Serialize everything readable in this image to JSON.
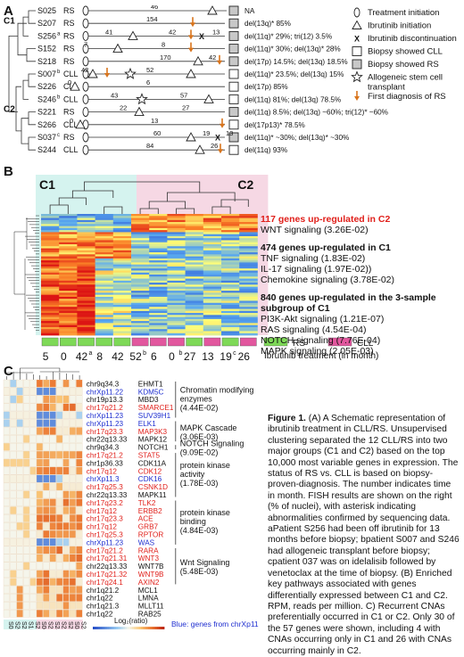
{
  "panelA": {
    "letter": "A",
    "clusters": [
      "C1",
      "C2"
    ],
    "patients": [
      {
        "id": "S025",
        "type": "RS",
        "months": "46",
        "fish": "NA"
      },
      {
        "id": "S207",
        "type": "RS",
        "months": "154",
        "fish": "del(13q)* 85%"
      },
      {
        "id": "S256",
        "sup": "a",
        "type": "RS",
        "months_a": "41",
        "months_b": "42",
        "months_c": "13",
        "fish": "del(11q)* 29%; tri(12) 3.5%"
      },
      {
        "id": "S152",
        "type": "RS",
        "months_a": "7",
        "months_b": "8",
        "fish": "del(11q)* 30%; del(13q)* 28%"
      },
      {
        "id": "S218",
        "type": "RS",
        "months_a": "170",
        "months_b": "42",
        "fish": "del(17p) 14.5%; del(13q) 18.5%"
      },
      {
        "id": "S007",
        "sup": "b",
        "type": "CLL",
        "months_a": "42",
        "months_b": "52",
        "fish": "del(11q)* 23.5%; del(13q) 15%"
      },
      {
        "id": "S226",
        "type": "CLL",
        "months_a": "0",
        "months_b": "6",
        "fish": "del(17p) 85%"
      },
      {
        "id": "S246",
        "sup": "b",
        "type": "CLL",
        "months_a": "43",
        "months_b": "57",
        "fish": "del(11q) 81%; del(13q) 78.5%"
      },
      {
        "id": "S221",
        "type": "RS",
        "months_a": "22",
        "months_b": "27",
        "fish": "del(11q) 8.5%; del(13q) ~60%; tri(12)* ~60%"
      },
      {
        "id": "S266",
        "type": "CLL",
        "months_a": "0",
        "months_b": "13",
        "fish": "del(17p13)* 78.5%"
      },
      {
        "id": "S037",
        "sup": "c",
        "type": "RS",
        "months_a": "60",
        "months_b": "19",
        "months_c": "13",
        "fish": "del(11q)* ~30%; del(13q)* ~30%"
      },
      {
        "id": "S244",
        "type": "CLL",
        "months": "84",
        "months_b": "26",
        "fish": "del(11q) 93%"
      }
    ],
    "legend": [
      {
        "icon": "circle",
        "label": "Treatment initiation"
      },
      {
        "icon": "triangle",
        "label": "Ibrutinib initiation"
      },
      {
        "icon": "x",
        "label": "Ibrutinib discontinuation"
      },
      {
        "icon": "square-white",
        "label": "Biopsy showed CLL"
      },
      {
        "icon": "square-grey",
        "label": "Biopsy showed RS"
      },
      {
        "icon": "star",
        "label": "Allogeneic stem cell transplant"
      },
      {
        "icon": "arrow",
        "label": "First diagnosis of RS"
      }
    ]
  },
  "panelB": {
    "letter": "B",
    "c1": "C1",
    "c2": "C2",
    "up_c2_title": "117 genes up-regulated in C2",
    "up_c2_items": [
      "WNT signaling (3.26E-02)"
    ],
    "up_c1_title": "474 genes up-regulated in C1",
    "up_c1_items": [
      "TNF signaling (1.83E-02)",
      "IL-17 signaling (1.97E-02))",
      "Chemokine signaling (3.78E-02)"
    ],
    "sub_title": "840 genes up-regulated in the 3-sample subgroup of C1",
    "sub_items": [
      "PI3K-Akt signaling (1.21E-07)",
      "RAS signaling (4.54E-04)",
      "NOTCH signaling (7.76E-04)",
      "MAPK signaling (2.05E-03)"
    ],
    "legend_rs": "RS",
    "legend_cll": "CLL",
    "ibr_treatment": "Ibrutinib treatment (in month)",
    "ibr_biopsy": "Ibrutinib treatment at biopsy",
    "zscore_label": "Log₂RPM Z-score",
    "zscore_ticks": [
      "-2",
      "-1",
      "0",
      "1",
      "2"
    ],
    "samples": [
      {
        "id": "S025",
        "months": "5",
        "at_biopsy": "+",
        "type": "RS"
      },
      {
        "id": "S207",
        "months": "0",
        "at_biopsy": "-",
        "type": "RS"
      },
      {
        "id": "S256",
        "months": "42a",
        "at_biopsy": "-",
        "type": "RS"
      },
      {
        "id": "S152",
        "months": "8",
        "at_biopsy": "+",
        "type": "RS"
      },
      {
        "id": "S218",
        "months": "42",
        "at_biopsy": "+",
        "type": "RS"
      },
      {
        "id": "S007",
        "months": "52b",
        "at_biopsy": "+",
        "type": "CLL"
      },
      {
        "id": "S226",
        "months": "6",
        "at_biopsy": "+",
        "type": "CLL"
      },
      {
        "id": "S246",
        "months": "0b",
        "at_biopsy": "-",
        "type": "CLL"
      },
      {
        "id": "S221",
        "months": "27",
        "at_biopsy": "+",
        "type": "RS"
      },
      {
        "id": "S266",
        "months": "13",
        "at_biopsy": "+",
        "type": "CLL"
      },
      {
        "id": "S037",
        "months": "19c",
        "at_biopsy": "-",
        "type": "RS"
      },
      {
        "id": "S244",
        "months": "26",
        "at_biopsy": "+",
        "type": "CLL"
      }
    ]
  },
  "panelC": {
    "letter": "C",
    "rows": [
      {
        "loc": "chr9q34.3",
        "gene": "EHMT1",
        "c": "k"
      },
      {
        "loc": "chrXp11.22",
        "gene": "KDM5C",
        "c": "b"
      },
      {
        "loc": "chr19p13.3",
        "gene": "MBD3",
        "c": "k"
      },
      {
        "loc": "chr17q21.2",
        "gene": "SMARCE1",
        "c": "r"
      },
      {
        "loc": "chrXp11.23",
        "gene": "SUV39H1",
        "c": "b"
      },
      {
        "loc": "chrXp11.23",
        "gene": "ELK1",
        "c": "b"
      },
      {
        "loc": "chr17q23.3",
        "gene": "MAP3K3",
        "c": "r"
      },
      {
        "loc": "chr22q13.33",
        "gene": "MAPK12",
        "c": "k"
      },
      {
        "loc": "chr9q34.3",
        "gene": "NOTCH1",
        "c": "k"
      },
      {
        "loc": "chr17q21.2",
        "gene": "STAT5",
        "c": "r"
      },
      {
        "loc": "chr1p36.33",
        "gene": "CDK11A",
        "c": "k"
      },
      {
        "loc": "chr17q12",
        "gene": "CDK12",
        "c": "r"
      },
      {
        "loc": "chrXp11.3",
        "gene": "CDK16",
        "c": "b"
      },
      {
        "loc": "chr17q25.3",
        "gene": "CSNK1D",
        "c": "r"
      },
      {
        "loc": "chr22q13.33",
        "gene": "MAPK11",
        "c": "k"
      },
      {
        "loc": "chr17q23.2",
        "gene": "TLK2",
        "c": "r"
      },
      {
        "loc": "chr17q12",
        "gene": "ERBB2",
        "c": "r"
      },
      {
        "loc": "chr17q23.3",
        "gene": "ACE",
        "c": "r"
      },
      {
        "loc": "chr17q12",
        "gene": "GRB7",
        "c": "r"
      },
      {
        "loc": "chr17q25.3",
        "gene": "RPTOR",
        "c": "r"
      },
      {
        "loc": "chrXp11.23",
        "gene": "WAS",
        "c": "b"
      },
      {
        "loc": "chr17q21.2",
        "gene": "RARA",
        "c": "r"
      },
      {
        "loc": "chr17q21.31",
        "gene": "WNT3",
        "c": "r"
      },
      {
        "loc": "chr22q13.33",
        "gene": "WNT7B",
        "c": "k"
      },
      {
        "loc": "chr17q21.32",
        "gene": "WNT9B",
        "c": "r"
      },
      {
        "loc": "chr17q24.1",
        "gene": "AXIN2",
        "c": "r"
      },
      {
        "loc": "chr1q21.2",
        "gene": "MCL1",
        "c": "k"
      },
      {
        "loc": "chr1q22",
        "gene": "LMNA",
        "c": "k"
      },
      {
        "loc": "chr1q21.3",
        "gene": "MLLT11",
        "c": "k"
      },
      {
        "loc": "chr1q22",
        "gene": "RAB25",
        "c": "k"
      }
    ],
    "groups": [
      {
        "label": "Chromatin modifying enzymes (4.44E-02)"
      },
      {
        "label": "MAPK Cascade (3.06E-03)"
      },
      {
        "label": "NOTCH Signaling (9.09E-02)"
      },
      {
        "label": "protein kinase activity (1.78E-03)"
      },
      {
        "label": "protein kinase binding (4.84E-03)"
      },
      {
        "label": "Wnt Signaling (5.48E-03)"
      }
    ],
    "cols": [
      "S025",
      "S207",
      "S256",
      "S152",
      "S218",
      "S007",
      "S226",
      "S246",
      "S221",
      "S266",
      "S037",
      "S244"
    ],
    "blue_note": "Blue: genes from chrXp11",
    "red_note": "Red: genes from chr17q",
    "c1": "C1",
    "c2": "C2",
    "log_label": "Log₂(ratio)",
    "log_ticks": [
      "-1.5",
      "-1",
      "-0.5",
      "0",
      "0.5",
      "1",
      "1.5"
    ]
  },
  "caption": {
    "title": "Figure 1.",
    "text": " (A) A Schematic representation of ibrutinib treatment in CLL/RS. Unsupervised clustering separated the 12 CLL/RS into two major groups (C1 and C2) based on the top 10,000 most variable genes in expression. The status of RS vs. CLL is based on biopsy-proven-diagnosis. The number indicates time in month. FISH results are shown on the right (% of nuclei), with asterisk indicating abnormalities confirmed by sequencing data. aPatient S256 had been off ibrutinib for 13 months before biopsy; bpatient S007 and S246 had allogeneic transplant before biopsy; cpatient 037 was on idelalisib followed by venetoclax at the time of biopsy. (B) Enriched key pathways associated with genes differentially expressed between C1 and C2. RPM, reads per million. C) Recurrent CNAs preferentially occurred in C1 or C2. Only 30 of the 57 genes were shown, including 4 with CNAs occurring only in C1 and 26 with CNAs occurring mainly in C2."
  },
  "colors": {
    "rs_green": "#7ed957",
    "cll_pink": "#e2579e",
    "c1_bg": "#d5f3ef",
    "c2_bg": "#f6d8e4",
    "red_text": "#e0201b",
    "blue_text": "#1f2fd0"
  }
}
